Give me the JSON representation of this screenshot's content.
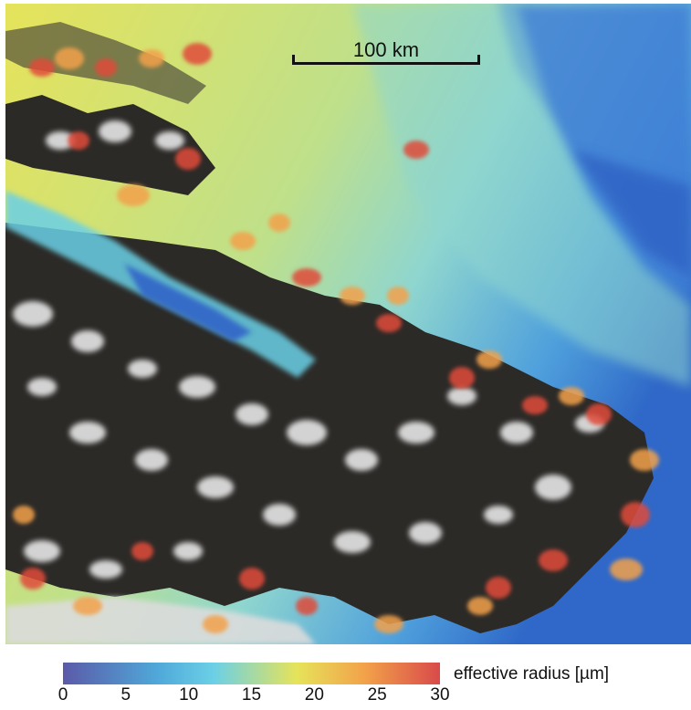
{
  "scale_bar": {
    "label": "100 km"
  },
  "colorbar": {
    "label": "effective radius [µm]",
    "ticks": [
      "0",
      "5",
      "10",
      "15",
      "20",
      "25",
      "30"
    ],
    "range": [
      0,
      30
    ],
    "colors": [
      "#5b5aa8",
      "#4fa8d9",
      "#6bd0e6",
      "#e6e35a",
      "#f2a24a",
      "#d94a4a"
    ]
  },
  "map": {
    "description_colors": {
      "ocean_dark": "#2a2825",
      "cloud_white": "#e8e8e8",
      "low_radius_blue": "#3f7fd6",
      "mid_radius_cyan": "#8fd6cf",
      "high_radius_yellow": "#ece65a",
      "very_high_radius_red": "#e04a3a"
    }
  }
}
